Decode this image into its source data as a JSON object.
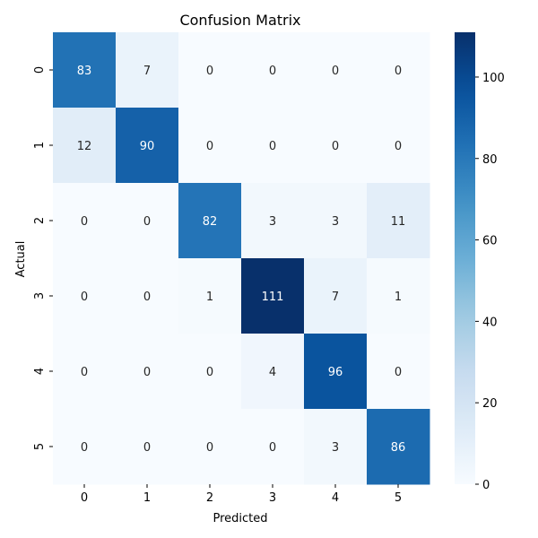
{
  "chart_data": {
    "type": "heatmap",
    "title": "Confusion Matrix",
    "xlabel": "Predicted",
    "ylabel": "Actual",
    "x_categories": [
      "0",
      "1",
      "2",
      "3",
      "4",
      "5"
    ],
    "y_categories": [
      "0",
      "1",
      "2",
      "3",
      "4",
      "5"
    ],
    "matrix": [
      [
        83,
        7,
        0,
        0,
        0,
        0
      ],
      [
        12,
        90,
        0,
        0,
        0,
        0
      ],
      [
        0,
        0,
        82,
        3,
        3,
        11
      ],
      [
        0,
        0,
        1,
        111,
        7,
        1
      ],
      [
        0,
        0,
        0,
        4,
        96,
        0
      ],
      [
        0,
        0,
        0,
        0,
        3,
        86
      ]
    ],
    "vmin": 0,
    "vmax": 111,
    "colormap": "Blues",
    "annotated": true,
    "grid": false,
    "colorbar": {
      "position": "right",
      "ticks": [
        0,
        20,
        40,
        60,
        80,
        100
      ]
    }
  }
}
